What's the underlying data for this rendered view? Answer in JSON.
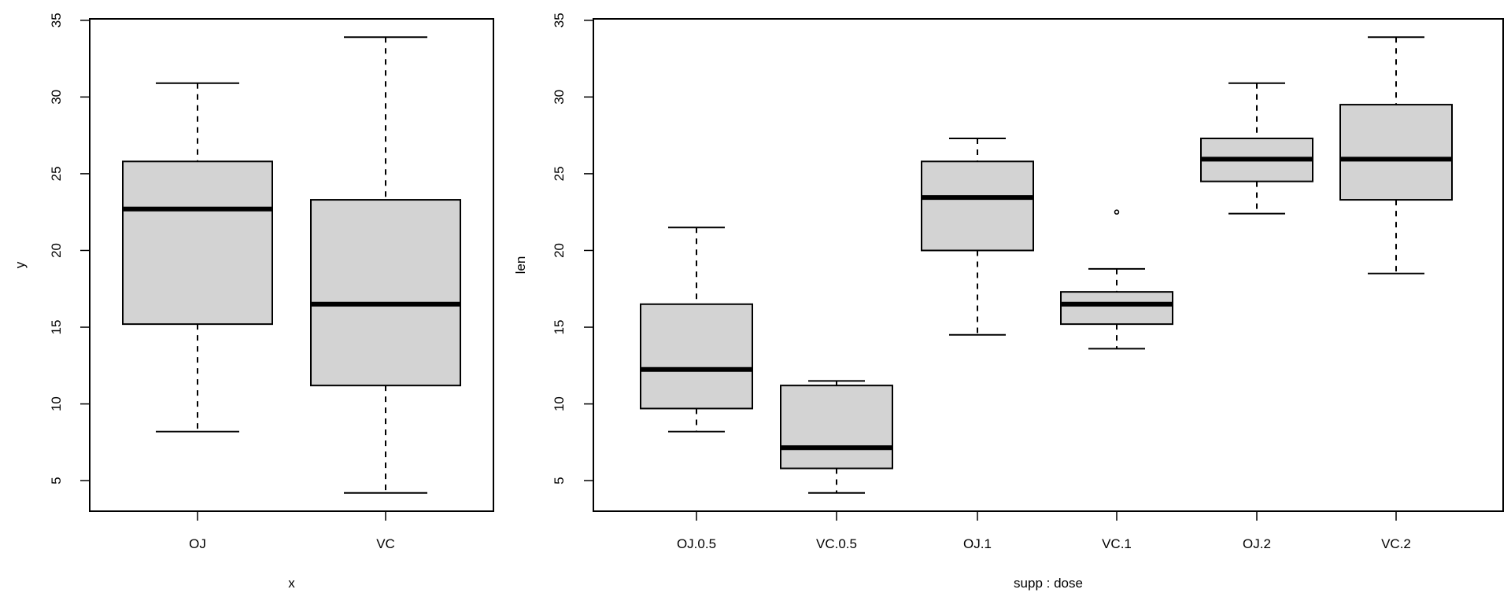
{
  "chart_data": [
    {
      "type": "boxplot",
      "xlabel": "x",
      "ylabel": "y",
      "ylim": [
        3.01,
        35.09
      ],
      "yticks": [
        5,
        10,
        15,
        20,
        25,
        30,
        35
      ],
      "box_fill": "#d3d3d3",
      "categories": [
        "OJ",
        "VC"
      ],
      "boxes": [
        {
          "min": 8.2,
          "q1": 15.2,
          "median": 22.7,
          "q3": 25.8,
          "max": 30.9,
          "outliers": []
        },
        {
          "min": 4.2,
          "q1": 11.2,
          "median": 16.5,
          "q3": 23.3,
          "max": 33.9,
          "outliers": []
        }
      ]
    },
    {
      "type": "boxplot",
      "xlabel": "supp : dose",
      "ylabel": "len",
      "ylim": [
        3.01,
        35.09
      ],
      "yticks": [
        5,
        10,
        15,
        20,
        25,
        30,
        35
      ],
      "box_fill": "#d3d3d3",
      "categories": [
        "OJ.0.5",
        "VC.0.5",
        "OJ.1",
        "VC.1",
        "OJ.2",
        "VC.2"
      ],
      "boxes": [
        {
          "min": 8.2,
          "q1": 9.7,
          "median": 12.25,
          "q3": 16.5,
          "max": 21.5,
          "outliers": []
        },
        {
          "min": 4.2,
          "q1": 5.8,
          "median": 7.15,
          "q3": 11.2,
          "max": 11.5,
          "outliers": []
        },
        {
          "min": 14.5,
          "q1": 20.0,
          "median": 23.45,
          "q3": 25.8,
          "max": 27.3,
          "outliers": []
        },
        {
          "min": 13.6,
          "q1": 15.2,
          "median": 16.5,
          "q3": 17.3,
          "max": 18.8,
          "outliers": [
            22.5
          ]
        },
        {
          "min": 22.4,
          "q1": 24.5,
          "median": 25.95,
          "q3": 27.3,
          "max": 30.9,
          "outliers": []
        },
        {
          "min": 18.5,
          "q1": 23.3,
          "median": 25.95,
          "q3": 29.5,
          "max": 33.9,
          "outliers": []
        }
      ]
    }
  ]
}
